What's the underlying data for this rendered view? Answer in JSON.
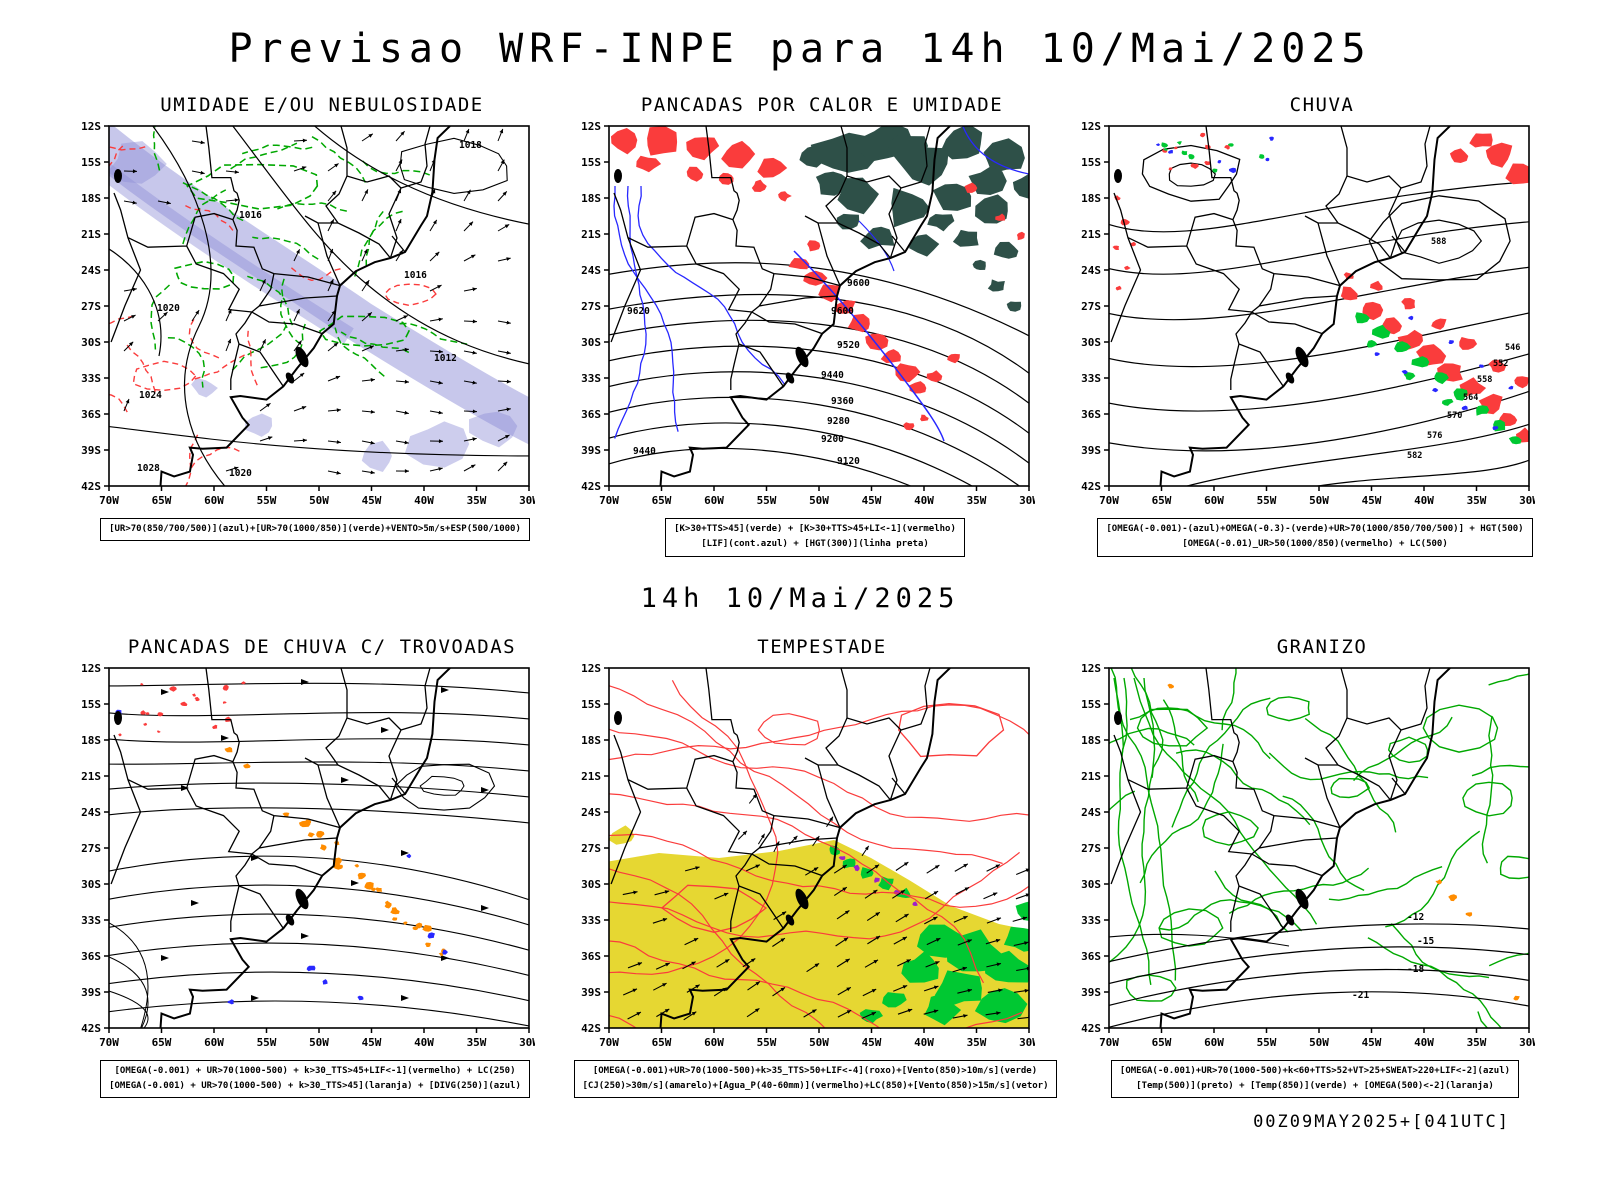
{
  "page_title": "Previsao WRF-INPE  para 14h 10/Mai/2025",
  "valid_time": "14h 10/Mai/2025",
  "run_info": "00Z09MAY2025+[041UTC]",
  "axes": {
    "lat": [
      "12S",
      "15S",
      "18S",
      "21S",
      "24S",
      "27S",
      "30S",
      "33S",
      "36S",
      "39S",
      "42S"
    ],
    "lon": [
      "70W",
      "65W",
      "60W",
      "55W",
      "50W",
      "45W",
      "40W",
      "35W",
      "30W"
    ]
  },
  "palette": {
    "green": "#00a800",
    "green2": "#00c832",
    "red": "#fa3c3c",
    "blue": "#2828ff",
    "teal": "#2e5048",
    "orange": "#ff8c00",
    "yellow": "#e6d732",
    "shade": "#9090d8",
    "roxo": "#a020c8",
    "black": "#000000"
  },
  "panels": [
    {
      "title": "UMIDADE E/OU NEBULOSIDADE",
      "caption_lines": [
        "[UR>70(850/700/500)](azul)+[UR>70(1000/850)](verde)+VENTO>5m/s+ESP(500/1000)"
      ],
      "map_labels": [
        "1016",
        "1020",
        "1016",
        "1012",
        "1024",
        "1020",
        "1018",
        "1028"
      ]
    },
    {
      "title": "PANCADAS POR CALOR E UMIDADE",
      "caption_lines": [
        "[K>30+TTS>45](verde) + [K>30+TTS>45+LI<-1](vermelho)",
        "[LIF](cont.azul) + [HGT(300)](linha preta)"
      ],
      "map_labels": [
        "9600",
        "9520",
        "9440",
        "9360",
        "9280",
        "9200",
        "9120",
        "9620",
        "9440",
        "9600"
      ]
    },
    {
      "title": "CHUVA",
      "caption_lines": [
        "[OMEGA(-0.001)-(azul)+OMEGA(-0.3)-(verde)+UR>70(1000/850/700/500)] + HGT(500)",
        "[OMEGA(-0.01)_UR>50(1000/850)(vermelho) + LC(500)"
      ],
      "map_labels": [
        "582",
        "576",
        "570",
        "564",
        "558",
        "552",
        "546",
        "588"
      ]
    },
    {
      "title": "PANCADAS DE CHUVA C/ TROVOADAS",
      "caption_lines": [
        "[OMEGA(-0.001) + UR>70(1000-500) + k>30_TTS>45+LIF<-1](vermelho) + LC(250)",
        "[OMEGA(-0.001) + UR>70(1000-500) + k>30_TTS>45](laranja) + [DIVG(250)](azul)"
      ],
      "map_labels": []
    },
    {
      "title": "TEMPESTADE",
      "caption_lines": [
        "[OMEGA(-0.001)+UR>70(1000-500)+k>35_TTS>50+LIF<-4](roxo)+[Vento(850)>10m/s](verde)",
        "[CJ(250)>30m/s](amarelo)+[Agua_P(40-60mm)](vermelho)+LC(850)+[Vento(850)>15m/s](vetor)"
      ],
      "map_labels": []
    },
    {
      "title": "GRANIZO",
      "caption_lines": [
        "[OMEGA(-0.001)+UR>70(1000-500)+k<60+TTS>52+VT>25+SWEAT>220+LIF<-2](azul)",
        "[Temp(500)](preto) + [Temp(850)](verde) + [OMEGA(500)<-2](laranja)"
      ],
      "map_labels": [
        "-12",
        "-15",
        "-18",
        "-21"
      ]
    }
  ]
}
